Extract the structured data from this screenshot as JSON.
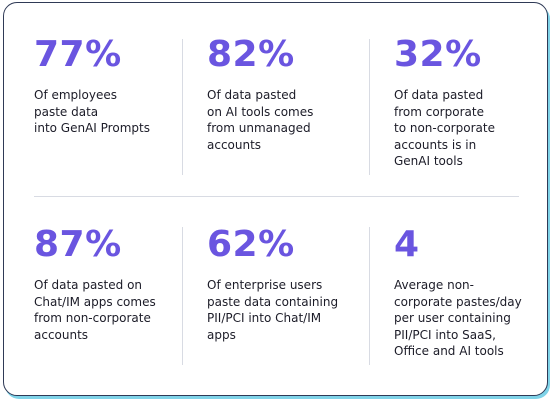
{
  "stats": [
    {
      "value": "77%",
      "text": "Of employees\npaste data\ninto GenAI Prompts"
    },
    {
      "value": "82%",
      "text": "Of data pasted\non AI tools comes\nfrom unmanaged\naccounts"
    },
    {
      "value": "32%",
      "text": "Of data pasted\nfrom corporate\nto non-corporate\naccounts is in\nGenAI tools"
    },
    {
      "value": "87%",
      "text": "Of data pasted on\nChat/IM apps comes\nfrom non-corporate\naccounts"
    },
    {
      "value": "62%",
      "text": "Of enterprise users\npaste data containing\nPII/PCI into Chat/IM\napps"
    },
    {
      "value": "4",
      "text": "Average non-\ncorporate pastes/day\nper user containing\nPII/PCI into SaaS,\nOffice and AI tools"
    }
  ],
  "colors": {
    "accent": "#6a55e0",
    "text": "#1c1c28",
    "border": "#2f3a56",
    "shadow": "#7fd3e8",
    "divider": "#d8dbe3"
  }
}
